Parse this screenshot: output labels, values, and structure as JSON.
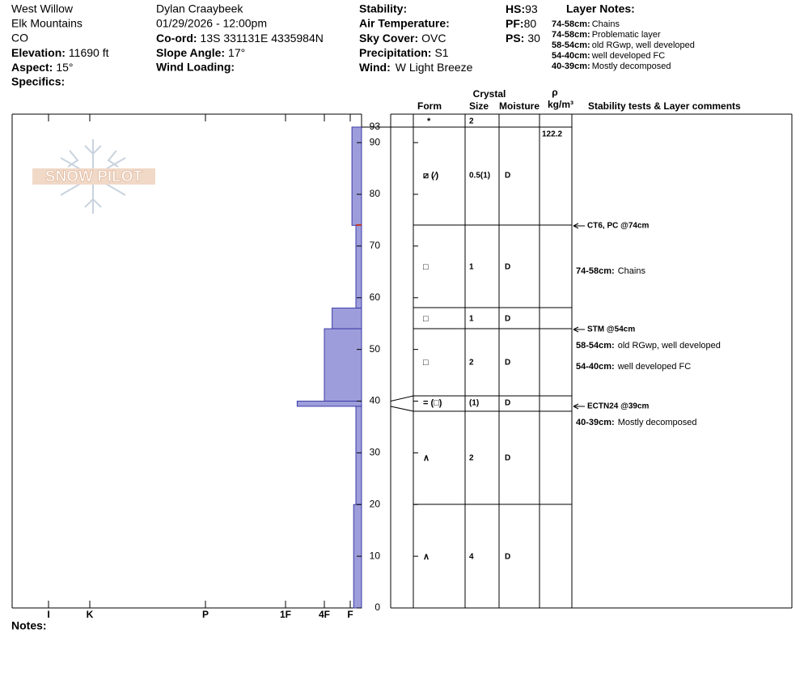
{
  "header": {
    "site": "West Willow",
    "range": "Elk Mountains",
    "state": "CO",
    "elevation": {
      "label": "Elevation:",
      "value": "11690 ft"
    },
    "aspect": {
      "label": "Aspect:",
      "value": "15°"
    },
    "specifics": {
      "label": "Specifics:"
    },
    "observer": "Dylan Craaybeek",
    "datetime": "01/29/2026 - 12:00pm",
    "coord": {
      "label": "Co-ord:",
      "value": "13S 331131E 4335984N"
    },
    "slope_angle": {
      "label": "Slope Angle:",
      "value": "17°"
    },
    "wind_loading": {
      "label": "Wind Loading:"
    },
    "stability": {
      "label": "Stability:"
    },
    "air_temperature": {
      "label": "Air Temperature:"
    },
    "sky_cover": {
      "label": "Sky Cover:",
      "value": "OVC"
    },
    "precipitation": {
      "label": "Precipitation:",
      "value": "S1"
    },
    "wind": {
      "label": "Wind:",
      "value": "W Light Breeze"
    },
    "hs": {
      "label": "HS:",
      "value": "93"
    },
    "pf": {
      "label": "PF:",
      "value": "80"
    },
    "ps": {
      "label": "PS:",
      "value": "30"
    }
  },
  "layer_notes": {
    "title": "Layer Notes:",
    "items": [
      {
        "range": "74-58cm:",
        "text": "Chains"
      },
      {
        "range": "74-58cm:",
        "text": "Problematic layer"
      },
      {
        "range": "58-54cm:",
        "text": "old RGwp, well developed"
      },
      {
        "range": "54-40cm:",
        "text": "well developed FC"
      },
      {
        "range": "40-39cm:",
        "text": "Mostly decomposed"
      }
    ]
  },
  "logo": "SNOW PILOT",
  "profile": {
    "depth_ticks": [
      0,
      10,
      20,
      30,
      40,
      50,
      60,
      70,
      80,
      90,
      93
    ],
    "hardness_ticks": [
      {
        "value": 6,
        "label": "I"
      },
      {
        "value": 5,
        "label": "K"
      },
      {
        "value": 4,
        "label": "P"
      },
      {
        "value": 3,
        "label": "1F"
      },
      {
        "value": 2,
        "label": "4F"
      },
      {
        "value": 1,
        "label": "F"
      }
    ],
    "layers": [
      {
        "top": 93,
        "bottom": 74,
        "hardness": 0.85
      },
      {
        "top": 74,
        "bottom": 58,
        "hardness": 0.5
      },
      {
        "top": 58,
        "bottom": 54,
        "hardness": 1.7
      },
      {
        "top": 54,
        "bottom": 40,
        "hardness": 2
      },
      {
        "top": 40,
        "bottom": 39,
        "hardness": 2.7
      },
      {
        "top": 39,
        "bottom": 20,
        "hardness": 0.5
      },
      {
        "top": 20,
        "bottom": 0,
        "hardness": 0.7
      }
    ]
  },
  "table": {
    "headers": {
      "crystal": "Crystal",
      "form": "Form",
      "size": "Size",
      "moisture": "Moisture",
      "rho": "ρ",
      "density_unit": "kg/m³",
      "comments": "Stability tests & Layer comments"
    },
    "density": "122.2",
    "rows": [
      {
        "form": "*",
        "size": "2"
      },
      {
        "form": "⧄ (⁄)",
        "size": "0.5(1)",
        "moisture": "D"
      },
      {
        "form": "□",
        "size": "1",
        "moisture": "D"
      },
      {
        "form": "□",
        "size": "1",
        "moisture": "D"
      },
      {
        "form": "□",
        "size": "2",
        "moisture": "D"
      },
      {
        "form": "= (□)",
        "size": "(1)",
        "moisture": "D"
      },
      {
        "form": "∧",
        "size": "2",
        "moisture": "D"
      },
      {
        "form": "∧",
        "size": "4",
        "moisture": "D"
      }
    ]
  },
  "tests": [
    "CT6, PC @74cm",
    "STM @54cm",
    "ECTN24 @39cm"
  ],
  "comments": [
    {
      "range": "74-58cm:",
      "text": "Chains"
    },
    {
      "range": "58-54cm:",
      "text": "old RGwp, well developed"
    },
    {
      "range": "54-40cm:",
      "text": "well developed FC"
    },
    {
      "range": "40-39cm:",
      "text": "Mostly decomposed"
    }
  ],
  "notes": "Notes:"
}
